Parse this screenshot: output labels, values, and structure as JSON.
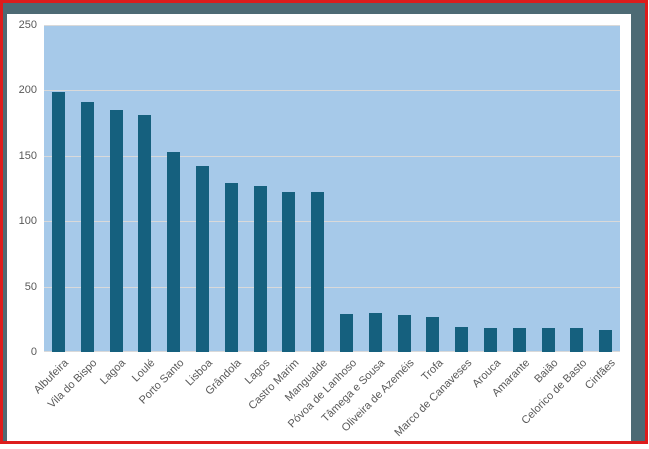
{
  "chart_data": {
    "type": "bar",
    "title": "",
    "categories": [
      "Albufeira",
      "Vila do Bispo",
      "Lagoa",
      "Loulé",
      "Porto Santo",
      "Lisboa",
      "Grândola",
      "Lagos",
      "Castro Marim",
      "Mangualde",
      "Póvoa de Lanhoso",
      "Tâmega e Sousa",
      "Oliveira de Azeméis",
      "Trofa",
      "Marco de Canaveses",
      "Arouca",
      "Amarante",
      "Baião",
      "Celorico de Basto",
      "Cinfães"
    ],
    "values": [
      199,
      191,
      185,
      181,
      153,
      142,
      129,
      127,
      122,
      122,
      29,
      30,
      28,
      27,
      19,
      18,
      18,
      18,
      18,
      17
    ],
    "xlabel": "",
    "ylabel": "",
    "ylim": [
      0,
      250
    ],
    "yticks": [
      0,
      50,
      100,
      150,
      200,
      250
    ],
    "grid": true,
    "legend": false,
    "x_tick_rotation_deg": 45
  },
  "colors": {
    "bar": "#15607e",
    "plot_background": "#a6c9e9",
    "chart_background": "#ffffff",
    "frame_background": "#4d6a74",
    "selection_border": "#dd1c1c",
    "gridline": "#d9d9d9",
    "axis_text": "#595959"
  }
}
